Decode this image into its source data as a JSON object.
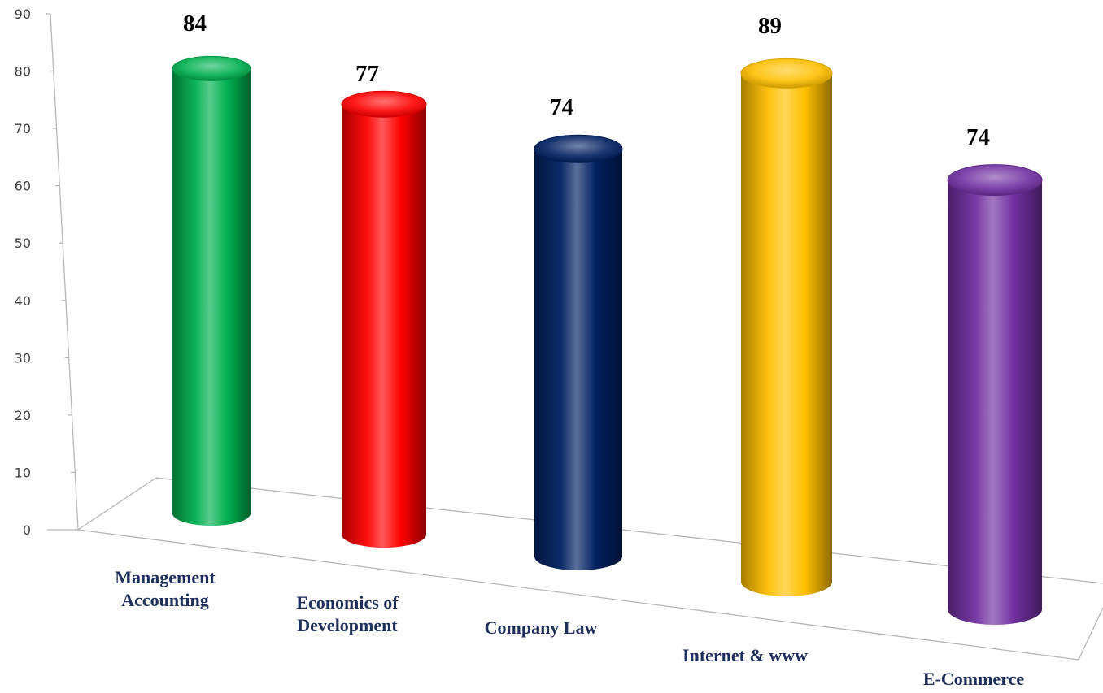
{
  "chart_data": {
    "type": "bar",
    "style": "3d-cylinder",
    "title": "",
    "xlabel": "",
    "ylabel": "",
    "ylim": [
      0,
      90
    ],
    "yticks": [
      "0",
      "10",
      "20",
      "30",
      "40",
      "50",
      "60",
      "70",
      "80",
      "90"
    ],
    "categories": [
      {
        "lines": [
          "Management",
          "Accounting"
        ]
      },
      {
        "lines": [
          "Economics of",
          "Development"
        ]
      },
      {
        "lines": [
          "Company Law"
        ]
      },
      {
        "lines": [
          "Internet & www"
        ]
      },
      {
        "lines": [
          "E-Commerce"
        ]
      }
    ],
    "values": [
      84,
      77,
      74,
      89,
      74
    ],
    "value_labels": [
      "84",
      "77",
      "74",
      "89",
      "74"
    ],
    "colors": [
      "#00b050",
      "#ff0000",
      "#002060",
      "#ffc000",
      "#7030a0"
    ],
    "grid": false,
    "legend": "none"
  }
}
